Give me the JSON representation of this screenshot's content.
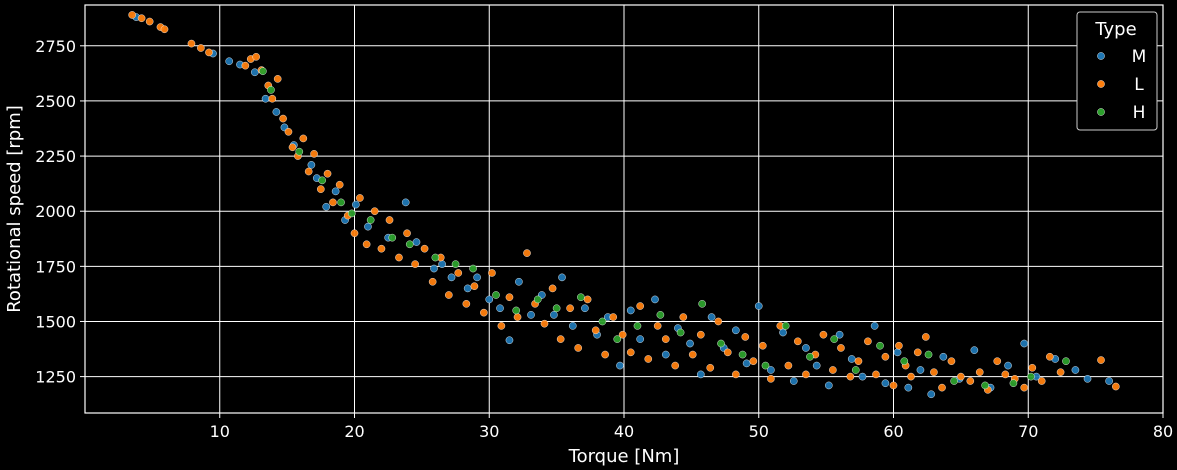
{
  "chart_data": {
    "type": "scatter",
    "title": "",
    "xlabel": "Torque [Nm]",
    "ylabel": "Rotational speed [rpm]",
    "xlim": [
      0,
      80
    ],
    "ylim": [
      1085,
      2935
    ],
    "xticks": [
      10,
      20,
      30,
      40,
      50,
      60,
      70,
      80
    ],
    "yticks": [
      1250,
      1500,
      1750,
      2000,
      2250,
      2500,
      2750
    ],
    "grid": true,
    "background": "#000000",
    "legend": {
      "title": "Type",
      "placement": "top-right",
      "entries": [
        "M",
        "L",
        "H"
      ]
    },
    "series": [
      {
        "name": "M",
        "color": "#1f77b4",
        "points": [
          [
            3.8,
            2880
          ],
          [
            9.5,
            2715
          ],
          [
            10.7,
            2680
          ],
          [
            11.5,
            2665
          ],
          [
            12.6,
            2630
          ],
          [
            13.4,
            2510
          ],
          [
            14.2,
            2450
          ],
          [
            14.8,
            2380
          ],
          [
            15.5,
            2300
          ],
          [
            16.8,
            2210
          ],
          [
            17.2,
            2150
          ],
          [
            17.9,
            2020
          ],
          [
            18.6,
            2090
          ],
          [
            19.3,
            1960
          ],
          [
            20.1,
            2030
          ],
          [
            21.0,
            1930
          ],
          [
            22.5,
            1880
          ],
          [
            23.8,
            2040
          ],
          [
            24.6,
            1860
          ],
          [
            25.9,
            1740
          ],
          [
            26.5,
            1760
          ],
          [
            27.2,
            1700
          ],
          [
            28.4,
            1650
          ],
          [
            29.1,
            1700
          ],
          [
            30.0,
            1600
          ],
          [
            30.8,
            1560
          ],
          [
            31.5,
            1415
          ],
          [
            32.2,
            1680
          ],
          [
            33.1,
            1530
          ],
          [
            33.9,
            1620
          ],
          [
            34.8,
            1530
          ],
          [
            35.4,
            1700
          ],
          [
            36.2,
            1480
          ],
          [
            37.1,
            1560
          ],
          [
            38.0,
            1440
          ],
          [
            38.8,
            1520
          ],
          [
            39.7,
            1300
          ],
          [
            40.5,
            1550
          ],
          [
            41.2,
            1420
          ],
          [
            42.3,
            1600
          ],
          [
            43.1,
            1350
          ],
          [
            44.0,
            1470
          ],
          [
            44.9,
            1400
          ],
          [
            45.7,
            1260
          ],
          [
            46.5,
            1520
          ],
          [
            47.4,
            1380
          ],
          [
            48.3,
            1460
          ],
          [
            49.1,
            1310
          ],
          [
            50.0,
            1570
          ],
          [
            50.9,
            1280
          ],
          [
            51.8,
            1450
          ],
          [
            52.6,
            1230
          ],
          [
            53.5,
            1380
          ],
          [
            54.3,
            1300
          ],
          [
            55.2,
            1210
          ],
          [
            56.0,
            1440
          ],
          [
            56.9,
            1330
          ],
          [
            57.7,
            1250
          ],
          [
            58.6,
            1480
          ],
          [
            59.4,
            1220
          ],
          [
            60.3,
            1360
          ],
          [
            61.1,
            1200
          ],
          [
            62.0,
            1280
          ],
          [
            62.8,
            1170
          ],
          [
            63.7,
            1340
          ],
          [
            64.9,
            1240
          ],
          [
            66.0,
            1370
          ],
          [
            67.2,
            1200
          ],
          [
            68.5,
            1300
          ],
          [
            69.7,
            1400
          ],
          [
            70.6,
            1250
          ],
          [
            72.0,
            1330
          ],
          [
            73.5,
            1280
          ],
          [
            74.4,
            1240
          ],
          [
            76.0,
            1230
          ]
        ]
      },
      {
        "name": "L",
        "color": "#ff7f0e",
        "points": [
          [
            3.5,
            2890
          ],
          [
            4.2,
            2875
          ],
          [
            4.8,
            2860
          ],
          [
            5.6,
            2835
          ],
          [
            5.9,
            2825
          ],
          [
            7.9,
            2760
          ],
          [
            8.6,
            2740
          ],
          [
            9.2,
            2720
          ],
          [
            11.9,
            2660
          ],
          [
            12.3,
            2690
          ],
          [
            12.7,
            2700
          ],
          [
            13.1,
            2640
          ],
          [
            13.6,
            2570
          ],
          [
            13.9,
            2510
          ],
          [
            14.3,
            2600
          ],
          [
            14.7,
            2420
          ],
          [
            15.1,
            2360
          ],
          [
            15.4,
            2290
          ],
          [
            15.8,
            2250
          ],
          [
            16.2,
            2330
          ],
          [
            16.6,
            2180
          ],
          [
            17.0,
            2260
          ],
          [
            17.5,
            2100
          ],
          [
            18.0,
            2170
          ],
          [
            18.4,
            2040
          ],
          [
            18.9,
            2120
          ],
          [
            19.5,
            1980
          ],
          [
            20.0,
            1900
          ],
          [
            20.4,
            2060
          ],
          [
            20.9,
            1850
          ],
          [
            21.5,
            2000
          ],
          [
            22.0,
            1830
          ],
          [
            22.6,
            1960
          ],
          [
            23.3,
            1790
          ],
          [
            23.9,
            1900
          ],
          [
            24.5,
            1760
          ],
          [
            25.2,
            1830
          ],
          [
            25.8,
            1680
          ],
          [
            26.4,
            1790
          ],
          [
            27.0,
            1620
          ],
          [
            27.7,
            1720
          ],
          [
            28.3,
            1580
          ],
          [
            28.9,
            1660
          ],
          [
            29.6,
            1540
          ],
          [
            30.2,
            1720
          ],
          [
            30.9,
            1480
          ],
          [
            31.5,
            1610
          ],
          [
            32.1,
            1520
          ],
          [
            32.8,
            1810
          ],
          [
            33.4,
            1580
          ],
          [
            34.1,
            1490
          ],
          [
            34.7,
            1650
          ],
          [
            35.3,
            1420
          ],
          [
            36.0,
            1560
          ],
          [
            36.6,
            1380
          ],
          [
            37.3,
            1600
          ],
          [
            37.9,
            1460
          ],
          [
            38.6,
            1350
          ],
          [
            39.2,
            1520
          ],
          [
            39.9,
            1440
          ],
          [
            40.5,
            1360
          ],
          [
            41.2,
            1570
          ],
          [
            41.8,
            1330
          ],
          [
            42.5,
            1480
          ],
          [
            43.1,
            1420
          ],
          [
            43.8,
            1300
          ],
          [
            44.4,
            1520
          ],
          [
            45.1,
            1350
          ],
          [
            45.7,
            1440
          ],
          [
            46.4,
            1290
          ],
          [
            47.0,
            1500
          ],
          [
            47.7,
            1360
          ],
          [
            48.3,
            1260
          ],
          [
            49.0,
            1430
          ],
          [
            49.6,
            1320
          ],
          [
            50.3,
            1390
          ],
          [
            50.9,
            1240
          ],
          [
            51.6,
            1480
          ],
          [
            52.2,
            1300
          ],
          [
            52.9,
            1410
          ],
          [
            53.5,
            1260
          ],
          [
            54.2,
            1350
          ],
          [
            54.8,
            1440
          ],
          [
            55.5,
            1280
          ],
          [
            56.1,
            1380
          ],
          [
            56.8,
            1250
          ],
          [
            57.4,
            1320
          ],
          [
            58.1,
            1410
          ],
          [
            58.7,
            1260
          ],
          [
            59.4,
            1340
          ],
          [
            60.0,
            1210
          ],
          [
            60.4,
            1390
          ],
          [
            60.9,
            1300
          ],
          [
            61.3,
            1250
          ],
          [
            61.8,
            1360
          ],
          [
            62.4,
            1430
          ],
          [
            63.0,
            1270
          ],
          [
            63.6,
            1200
          ],
          [
            64.3,
            1320
          ],
          [
            65.0,
            1250
          ],
          [
            65.7,
            1230
          ],
          [
            66.4,
            1270
          ],
          [
            67.0,
            1190
          ],
          [
            67.7,
            1320
          ],
          [
            68.3,
            1260
          ],
          [
            69.0,
            1240
          ],
          [
            69.7,
            1200
          ],
          [
            70.3,
            1290
          ],
          [
            71.0,
            1230
          ],
          [
            71.6,
            1340
          ],
          [
            72.4,
            1270
          ],
          [
            75.4,
            1325
          ],
          [
            76.5,
            1205
          ]
        ]
      },
      {
        "name": "H",
        "color": "#2ca02c",
        "points": [
          [
            13.2,
            2635
          ],
          [
            13.8,
            2550
          ],
          [
            15.9,
            2270
          ],
          [
            17.6,
            2140
          ],
          [
            19.0,
            2040
          ],
          [
            19.8,
            1990
          ],
          [
            21.2,
            1960
          ],
          [
            22.8,
            1880
          ],
          [
            24.1,
            1850
          ],
          [
            26.0,
            1790
          ],
          [
            27.5,
            1760
          ],
          [
            28.8,
            1740
          ],
          [
            30.5,
            1620
          ],
          [
            32.0,
            1550
          ],
          [
            33.6,
            1600
          ],
          [
            35.0,
            1560
          ],
          [
            36.8,
            1610
          ],
          [
            38.4,
            1500
          ],
          [
            39.5,
            1420
          ],
          [
            41.0,
            1480
          ],
          [
            42.7,
            1530
          ],
          [
            44.2,
            1450
          ],
          [
            45.8,
            1580
          ],
          [
            47.2,
            1400
          ],
          [
            48.8,
            1350
          ],
          [
            50.5,
            1300
          ],
          [
            52.0,
            1480
          ],
          [
            53.8,
            1340
          ],
          [
            55.6,
            1420
          ],
          [
            57.2,
            1280
          ],
          [
            59.0,
            1390
          ],
          [
            60.8,
            1320
          ],
          [
            62.6,
            1350
          ],
          [
            64.5,
            1230
          ],
          [
            66.8,
            1210
          ],
          [
            68.9,
            1220
          ],
          [
            70.2,
            1250
          ],
          [
            72.8,
            1320
          ]
        ]
      }
    ]
  }
}
